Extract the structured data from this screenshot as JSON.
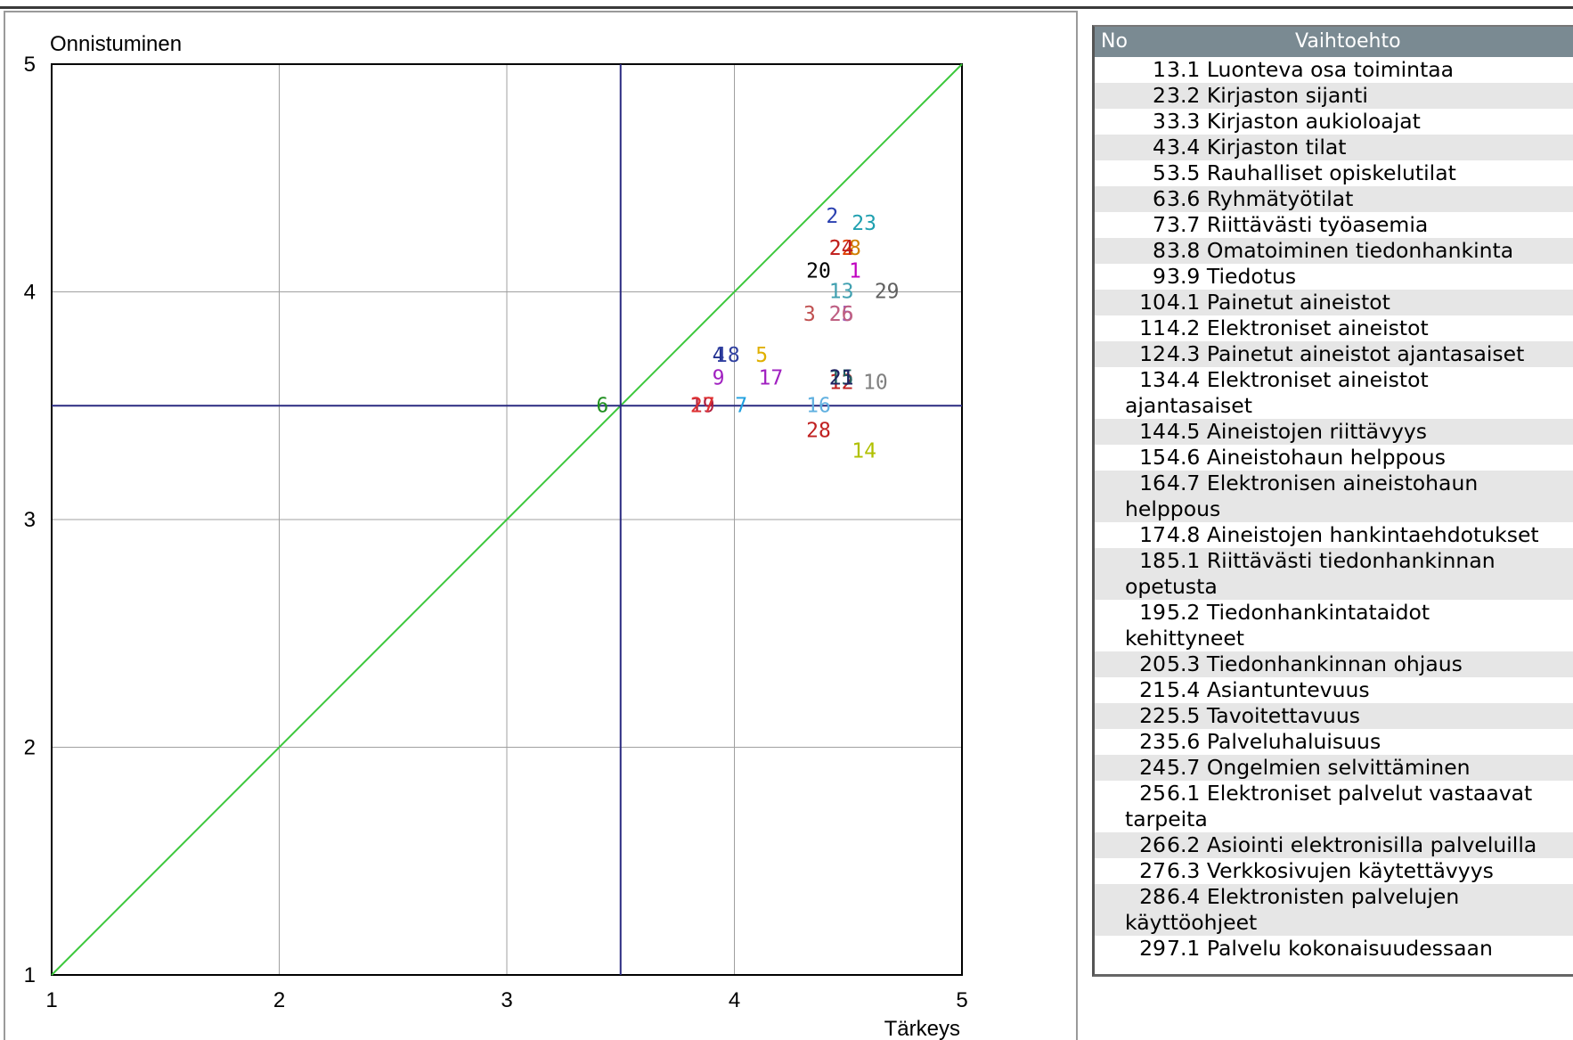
{
  "chart_data": {
    "type": "scatter",
    "xlabel": "Tärkeys",
    "ylabel": "Onnistuminen",
    "xlim": [
      1,
      5
    ],
    "ylim": [
      1,
      5
    ],
    "xticks": [
      1,
      2,
      3,
      4,
      5
    ],
    "yticks": [
      1,
      2,
      3,
      4,
      5
    ],
    "grid": true,
    "reference_lines": {
      "diagonal": "y = x",
      "vertical_x": 3.5,
      "horizontal_y": 3.5
    },
    "colors": {
      "grid": "#a0a0a0",
      "diagonal": "#3cc83c",
      "crosshair": "#2a2a80"
    },
    "points": [
      {
        "label": "1",
        "x": 4.53,
        "y": 4.09,
        "color": "#c000c0"
      },
      {
        "label": "2",
        "x": 4.43,
        "y": 4.33,
        "color": "#2a40b0"
      },
      {
        "label": "3",
        "x": 4.33,
        "y": 3.9,
        "color": "#c05050"
      },
      {
        "label": "4",
        "x": 3.93,
        "y": 3.72,
        "color": "#203090"
      },
      {
        "label": "5",
        "x": 4.12,
        "y": 3.72,
        "color": "#e0b000"
      },
      {
        "label": "6",
        "x": 3.42,
        "y": 3.5,
        "color": "#209020"
      },
      {
        "label": "7",
        "x": 4.03,
        "y": 3.5,
        "color": "#20a0e0"
      },
      {
        "label": "8",
        "x": 4.53,
        "y": 4.19,
        "color": "#d08000"
      },
      {
        "label": "9",
        "x": 3.93,
        "y": 3.62,
        "color": "#a020c0"
      },
      {
        "label": "10",
        "x": 4.62,
        "y": 3.6,
        "color": "#808080"
      },
      {
        "label": "11",
        "x": 4.47,
        "y": 3.62,
        "color": "#20a0a0"
      },
      {
        "label": "12",
        "x": 4.47,
        "y": 3.6,
        "color": "#c02020"
      },
      {
        "label": "13",
        "x": 4.47,
        "y": 4.0,
        "color": "#40a0b0"
      },
      {
        "label": "14",
        "x": 4.57,
        "y": 3.3,
        "color": "#b0c000"
      },
      {
        "label": "15",
        "x": 4.47,
        "y": 3.62,
        "color": "#206060"
      },
      {
        "label": "16",
        "x": 4.37,
        "y": 3.5,
        "color": "#60b0e0"
      },
      {
        "label": "17",
        "x": 4.16,
        "y": 3.62,
        "color": "#a020c0"
      },
      {
        "label": "18",
        "x": 3.97,
        "y": 3.72,
        "color": "#3040a0"
      },
      {
        "label": "19",
        "x": 3.86,
        "y": 3.5,
        "color": "#b02040"
      },
      {
        "label": "20",
        "x": 4.37,
        "y": 4.09,
        "color": "#000000"
      },
      {
        "label": "21",
        "x": 4.47,
        "y": 3.62,
        "color": "#202060"
      },
      {
        "label": "22",
        "x": 4.47,
        "y": 4.19,
        "color": "#e04000"
      },
      {
        "label": "23",
        "x": 4.57,
        "y": 4.3,
        "color": "#20a0b0"
      },
      {
        "label": "24",
        "x": 4.47,
        "y": 4.19,
        "color": "#c02020"
      },
      {
        "label": "25",
        "x": 4.47,
        "y": 3.9,
        "color": "#a060c0"
      },
      {
        "label": "26",
        "x": 4.47,
        "y": 3.9,
        "color": "#c06080"
      },
      {
        "label": "27",
        "x": 3.86,
        "y": 3.5,
        "color": "#e03030"
      },
      {
        "label": "28",
        "x": 4.37,
        "y": 3.39,
        "color": "#c02020"
      },
      {
        "label": "29",
        "x": 4.67,
        "y": 4.0,
        "color": "#606060"
      }
    ]
  },
  "legend": {
    "header_no": "No",
    "header_option": "Vaihtoehto",
    "rows": [
      {
        "no": "1",
        "lines": [
          "3.1 Luonteva osa toimintaa"
        ]
      },
      {
        "no": "2",
        "lines": [
          "3.2 Kirjaston sijanti"
        ]
      },
      {
        "no": "3",
        "lines": [
          "3.3 Kirjaston aukioloajat"
        ]
      },
      {
        "no": "4",
        "lines": [
          "3.4 Kirjaston tilat"
        ]
      },
      {
        "no": "5",
        "lines": [
          "3.5 Rauhalliset opiskelutilat"
        ]
      },
      {
        "no": "6",
        "lines": [
          "3.6 Ryhmätyötilat"
        ]
      },
      {
        "no": "7",
        "lines": [
          "3.7 Riittävästi työasemia"
        ]
      },
      {
        "no": "8",
        "lines": [
          "3.8 Omatoiminen tiedonhankinta"
        ]
      },
      {
        "no": "9",
        "lines": [
          "3.9 Tiedotus"
        ]
      },
      {
        "no": "10",
        "lines": [
          "4.1 Painetut aineistot"
        ]
      },
      {
        "no": "11",
        "lines": [
          "4.2 Elektroniset aineistot"
        ]
      },
      {
        "no": "12",
        "lines": [
          "4.3 Painetut aineistot ajantasaiset"
        ]
      },
      {
        "no": "13",
        "lines": [
          "4.4 Elektroniset aineistot",
          "ajantasaiset"
        ]
      },
      {
        "no": "14",
        "lines": [
          "4.5 Aineistojen riittävyys"
        ]
      },
      {
        "no": "15",
        "lines": [
          "4.6 Aineistohaun helppous"
        ]
      },
      {
        "no": "16",
        "lines": [
          "4.7 Elektronisen aineistohaun",
          "helppous"
        ]
      },
      {
        "no": "17",
        "lines": [
          "4.8 Aineistojen hankintaehdotukset"
        ]
      },
      {
        "no": "18",
        "lines": [
          "5.1 Riittävästi tiedonhankinnan",
          "opetusta"
        ]
      },
      {
        "no": "19",
        "lines": [
          "5.2 Tiedonhankintataidot",
          "kehittyneet"
        ]
      },
      {
        "no": "20",
        "lines": [
          "5.3 Tiedonhankinnan ohjaus"
        ]
      },
      {
        "no": "21",
        "lines": [
          "5.4 Asiantuntevuus"
        ]
      },
      {
        "no": "22",
        "lines": [
          "5.5 Tavoitettavuus"
        ]
      },
      {
        "no": "23",
        "lines": [
          "5.6 Palveluhaluisuus"
        ]
      },
      {
        "no": "24",
        "lines": [
          "5.7 Ongelmien selvittäminen"
        ]
      },
      {
        "no": "25",
        "lines": [
          "6.1 Elektroniset palvelut vastaavat",
          "tarpeita"
        ]
      },
      {
        "no": "26",
        "lines": [
          "6.2 Asiointi elektronisilla palveluilla"
        ]
      },
      {
        "no": "27",
        "lines": [
          "6.3 Verkkosivujen käytettävyys"
        ]
      },
      {
        "no": "28",
        "lines": [
          "6.4 Elektronisten palvelujen",
          "käyttöohjeet"
        ]
      },
      {
        "no": "29",
        "lines": [
          "7.1 Palvelu kokonaisuudessaan"
        ]
      }
    ]
  }
}
